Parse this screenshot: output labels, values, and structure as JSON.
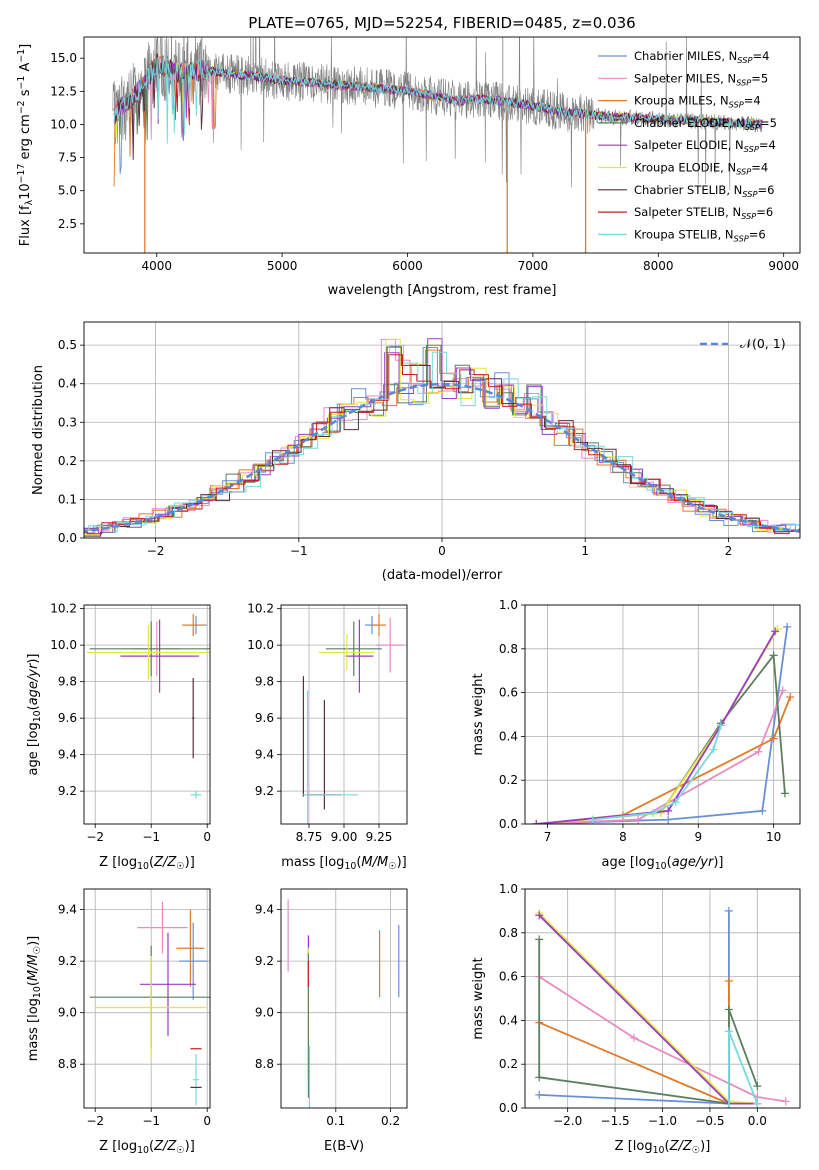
{
  "colors": {
    "Chabrier MILES": "#6a8fd8",
    "Salpeter MILES": "#e98ac2",
    "Kroupa MILES": "#e07a2a",
    "Chabrier ELODIE": "#5a7f5f",
    "Salpeter ELODIE": "#9a3cc8",
    "Kroupa ELODIE": "#e6e63a",
    "Chabrier STELIB": "#5a2e3a",
    "Salpeter STELIB": "#c81e1e",
    "Kroupa STELIB": "#78d8dc",
    "data": "#808080",
    "gauss": "#5b86d6"
  },
  "chart_data": [
    {
      "id": "spectrum",
      "type": "line",
      "title": "PLATE=0765, MJD=52254, FIBERID=0485, z=0.036",
      "xlabel": "wavelength [Angstrom, rest frame]",
      "ylabel": "Flux [f_λ10^-17 erg cm^-2 s^-1 A^-1]",
      "xlim": [
        3420,
        9130
      ],
      "ylim": [
        0.3,
        16.6
      ],
      "xticks": [
        4000,
        5000,
        6000,
        7000,
        8000,
        9000
      ],
      "yticks": [
        2.5,
        5.0,
        7.5,
        10.0,
        12.5,
        15.0
      ],
      "legend_position": "top-right",
      "legend": [
        "Chabrier MILES, N_SSP=4",
        "Salpeter MILES, N_SSP=5",
        "Kroupa MILES, N_SSP=4",
        "Chabrier ELODIE, N_SSP=5",
        "Salpeter ELODIE, N_SSP=4",
        "Kroupa ELODIE, N_SSP=4",
        "Chabrier STELIB, N_SSP=6",
        "Salpeter STELIB, N_SSP=6",
        "Kroupa STELIB, N_SSP=6"
      ],
      "continuum_wavelength": [
        3650,
        3700,
        3800,
        3900,
        4000,
        4100,
        4200,
        4300,
        4400,
        4500,
        4600,
        4800,
        5000,
        5200,
        5400,
        5600,
        5800,
        6000,
        6200,
        6400,
        6600,
        6800,
        7000,
        7200,
        7400,
        7600,
        7800,
        8000,
        8200,
        8400,
        8600,
        8800
      ],
      "continuum_flux": [
        10.5,
        11.2,
        12.0,
        13.0,
        14.6,
        14.2,
        13.9,
        14.0,
        14.1,
        13.9,
        13.8,
        13.6,
        13.3,
        13.2,
        13.0,
        12.9,
        12.7,
        12.5,
        12.2,
        11.8,
        11.9,
        11.7,
        11.4,
        11.0,
        10.8,
        10.6,
        10.5,
        10.4,
        10.3,
        10.2,
        10.1,
        10.0
      ]
    },
    {
      "id": "residuals",
      "type": "bar",
      "xlabel": "(data-model)/error",
      "ylabel": "Normed distribution",
      "xlim": [
        -2.5,
        2.5
      ],
      "ylim": [
        0,
        0.56
      ],
      "xticks": [
        -2,
        -1,
        0,
        1,
        2
      ],
      "yticks": [
        0.0,
        0.1,
        0.2,
        0.3,
        0.4,
        0.5
      ],
      "legend": [
        "𝒩(0, 1)"
      ],
      "legend_position": "top-right",
      "bin_width": 0.1,
      "spikes": [
        [
          -0.4,
          0.52
        ],
        [
          -0.3,
          0.47
        ],
        [
          -0.1,
          0.42
        ],
        [
          0.2,
          0.44
        ],
        [
          0.4,
          0.43
        ],
        [
          -0.1,
          0.53
        ],
        [
          0.6,
          0.41
        ]
      ]
    },
    {
      "id": "age-vs-Z",
      "type": "scatter",
      "xlabel": "Z [log10(Z/Z☉)]",
      "ylabel": "age [log10(age/yr)]",
      "xlim": [
        -2.2,
        0.05
      ],
      "ylim": [
        9.02,
        10.22
      ],
      "xticks": [
        -2,
        -1,
        0
      ],
      "yticks": [
        9.2,
        9.4,
        9.6,
        9.8,
        10.0,
        10.2
      ],
      "points": [
        {
          "series": "Chabrier MILES",
          "x": -0.2,
          "y": 10.11,
          "xerr": 0.2,
          "yerr": 0.05
        },
        {
          "series": "Kroupa MILES",
          "x": -0.25,
          "y": 10.11,
          "xerr": 0.2,
          "yerr": 0.06
        },
        {
          "series": "Salpeter MILES",
          "x": -0.9,
          "y": 9.98,
          "xerr": 0.4,
          "yerr": 0.15
        },
        {
          "series": "Chabrier ELODIE",
          "x": -1.0,
          "y": 9.98,
          "xerr": 1.1,
          "yerr": 0.15
        },
        {
          "series": "Salpeter ELODIE",
          "x": -0.85,
          "y": 9.94,
          "xerr": 0.7,
          "yerr": 0.2
        },
        {
          "series": "Kroupa ELODIE",
          "x": -1.05,
          "y": 9.96,
          "xerr": 1.1,
          "yerr": 0.15
        },
        {
          "series": "Chabrier STELIB",
          "x": -0.25,
          "y": 9.6,
          "xerr": 0.02,
          "yerr": 0.22
        },
        {
          "series": "Kroupa STELIB",
          "x": -0.2,
          "y": 9.18,
          "xerr": 0.1,
          "yerr": 0.02
        }
      ]
    },
    {
      "id": "age-vs-mass",
      "type": "scatter",
      "xlabel": "mass [log10(M/M☉)]",
      "ylabel": "",
      "xlim": [
        8.55,
        9.45
      ],
      "ylim": [
        9.02,
        10.22
      ],
      "xticks": [
        8.75,
        9.0,
        9.25
      ],
      "yticks": [
        9.2,
        9.4,
        9.6,
        9.8,
        10.0,
        10.2
      ],
      "points": [
        {
          "series": "Chabrier MILES",
          "x": 9.2,
          "y": 10.11,
          "xerr": 0.05,
          "yerr": 0.05
        },
        {
          "series": "Kroupa MILES",
          "x": 9.25,
          "y": 10.11,
          "xerr": 0.05,
          "yerr": 0.06
        },
        {
          "series": "Salpeter MILES",
          "x": 9.33,
          "y": 10.0,
          "xerr": 0.1,
          "yerr": 0.15
        },
        {
          "series": "Chabrier ELODIE",
          "x": 9.07,
          "y": 9.98,
          "xerr": 0.2,
          "yerr": 0.15
        },
        {
          "series": "Salpeter ELODIE",
          "x": 9.11,
          "y": 9.94,
          "xerr": 0.1,
          "yerr": 0.2
        },
        {
          "series": "Kroupa ELODIE",
          "x": 9.02,
          "y": 9.96,
          "xerr": 0.2,
          "yerr": 0.1
        },
        {
          "series": "Chabrier STELIB",
          "x": 8.71,
          "y": 9.5,
          "xerr": 0.0,
          "yerr": 0.33
        },
        {
          "series": "Kroupa STELIB",
          "x": 8.74,
          "y": 9.35,
          "xerr": 0.0,
          "yerr": 0.4
        },
        {
          "series": "Salpeter STELIB",
          "x": 8.86,
          "y": 9.18,
          "xerr": 0.12,
          "yerr": 0.0
        },
        {
          "series": "Chabrier STELIB",
          "x": 8.86,
          "y": 9.4,
          "xerr": 0.0,
          "yerr": 0.3
        },
        {
          "series": "Kroupa STELIB",
          "x": 8.9,
          "y": 9.18,
          "xerr": 0.2,
          "yerr": 0.0
        }
      ]
    },
    {
      "id": "massweight-vs-age",
      "type": "line",
      "xlabel": "age [log10(age/yr)]",
      "ylabel": "mass weight",
      "xlim": [
        6.7,
        10.35
      ],
      "ylim": [
        0,
        1.0
      ],
      "xticks": [
        7,
        8,
        9,
        10
      ],
      "yticks": [
        0.0,
        0.2,
        0.4,
        0.6,
        0.8,
        1.0
      ],
      "series": [
        {
          "name": "Chabrier MILES",
          "x": [
            6.85,
            8.6,
            9.85,
            10.18
          ],
          "y": [
            0.0,
            0.02,
            0.06,
            0.9
          ]
        },
        {
          "name": "Salpeter MILES",
          "x": [
            6.85,
            8.2,
            9.8,
            10.12
          ],
          "y": [
            0.0,
            0.02,
            0.33,
            0.61
          ]
        },
        {
          "name": "Kroupa MILES",
          "x": [
            6.85,
            8.0,
            10.0,
            10.22
          ],
          "y": [
            0.0,
            0.04,
            0.39,
            0.58
          ]
        },
        {
          "name": "Chabrier ELODIE",
          "x": [
            6.85,
            8.5,
            9.3,
            10.0,
            10.15
          ],
          "y": [
            0.0,
            0.05,
            0.46,
            0.77,
            0.14
          ]
        },
        {
          "name": "Kroupa ELODIE",
          "x": [
            6.85,
            8.5,
            9.3,
            10.05
          ],
          "y": [
            0.0,
            0.05,
            0.45,
            0.89
          ]
        },
        {
          "name": "Salpeter ELODIE",
          "x": [
            6.85,
            8.6,
            9.3,
            10.02
          ],
          "y": [
            0.0,
            0.06,
            0.45,
            0.88
          ]
        },
        {
          "name": "Kroupa STELIB",
          "x": [
            7.6,
            8.4,
            8.7,
            9.2,
            9.3
          ],
          "y": [
            0.02,
            0.05,
            0.1,
            0.34,
            0.45
          ]
        }
      ]
    },
    {
      "id": "mass-vs-Z",
      "type": "scatter",
      "xlabel": "Z [log10(Z/Z☉)]",
      "ylabel": "mass [log10(M/M☉)]",
      "xlim": [
        -2.2,
        0.05
      ],
      "ylim": [
        8.63,
        9.48
      ],
      "xticks": [
        -2,
        -1,
        0
      ],
      "yticks": [
        8.8,
        9.0,
        9.2,
        9.4
      ],
      "points": [
        {
          "series": "Salpeter MILES",
          "x": -0.8,
          "y": 9.33,
          "xerr": 0.45,
          "yerr": 0.1
        },
        {
          "series": "Kroupa MILES",
          "x": -0.3,
          "y": 9.25,
          "xerr": 0.25,
          "yerr": 0.15
        },
        {
          "series": "Chabrier MILES",
          "x": -0.25,
          "y": 9.2,
          "xerr": 0.25,
          "yerr": 0.15
        },
        {
          "series": "Salpeter ELODIE",
          "x": -0.7,
          "y": 9.11,
          "xerr": 0.5,
          "yerr": 0.2
        },
        {
          "series": "Chabrier ELODIE",
          "x": -1.0,
          "y": 9.06,
          "xerr": 1.1,
          "yerr": 0.2
        },
        {
          "series": "Kroupa ELODIE",
          "x": -1.0,
          "y": 9.02,
          "xerr": 1.0,
          "yerr": 0.2
        },
        {
          "series": "Salpeter STELIB",
          "x": -0.2,
          "y": 8.86,
          "xerr": 0.1,
          "yerr": 0.0
        },
        {
          "series": "Kroupa STELIB",
          "x": -0.2,
          "y": 8.74,
          "xerr": 0.05,
          "yerr": 0.1
        },
        {
          "series": "Chabrier STELIB",
          "x": -0.2,
          "y": 8.71,
          "xerr": 0.1,
          "yerr": 0.0
        }
      ]
    },
    {
      "id": "mass-vs-ebv",
      "type": "scatter",
      "xlabel": "E(B-V)",
      "ylabel": "",
      "xlim": [
        0.0,
        0.23
      ],
      "ylim": [
        8.63,
        9.48
      ],
      "xticks": [
        0.1,
        0.2
      ],
      "yticks": [
        8.8,
        9.0,
        9.2,
        9.4
      ],
      "points": [
        {
          "series": "Salpeter MILES",
          "x": 0.013,
          "y": 9.3,
          "xerr": 0.0,
          "yerr": 0.14
        },
        {
          "series": "Salpeter ELODIE",
          "x": 0.05,
          "y": 9.2,
          "xerr": 0.0,
          "yerr": 0.1
        },
        {
          "series": "Kroupa ELODIE",
          "x": 0.05,
          "y": 9.0,
          "xerr": 0.0,
          "yerr": 0.25
        },
        {
          "series": "Chabrier ELODIE",
          "x": 0.05,
          "y": 8.95,
          "xerr": 0.0,
          "yerr": 0.28
        },
        {
          "series": "Kroupa STELIB",
          "x": 0.052,
          "y": 8.75,
          "xerr": 0.0,
          "yerr": 0.12
        },
        {
          "series": "Salpeter STELIB",
          "x": 0.05,
          "y": 9.15,
          "xerr": 0.0,
          "yerr": 0.05
        },
        {
          "series": "Kroupa MILES",
          "x": 0.18,
          "y": 9.19,
          "xerr": 0.0,
          "yerr": 0.13
        },
        {
          "series": "Chabrier MILES",
          "x": 0.215,
          "y": 9.2,
          "xerr": 0.0,
          "yerr": 0.14
        }
      ]
    },
    {
      "id": "massweight-vs-Z",
      "type": "line",
      "xlabel": "Z [log10(Z/Z☉)]",
      "ylabel": "mass weight",
      "xlim": [
        -2.45,
        0.45
      ],
      "ylim": [
        0,
        1.0
      ],
      "xticks": [
        -2.0,
        -1.5,
        -1.0,
        -0.5,
        0.0
      ],
      "yticks": [
        0.0,
        0.2,
        0.4,
        0.6,
        0.8,
        1.0
      ],
      "series": [
        {
          "name": "Chabrier MILES",
          "x": [
            -2.3,
            -0.3,
            -0.3
          ],
          "y": [
            0.06,
            0.02,
            0.9
          ]
        },
        {
          "name": "Salpeter MILES",
          "x": [
            -2.3,
            -1.3,
            0.0,
            0.3
          ],
          "y": [
            0.6,
            0.32,
            0.05,
            0.03
          ]
        },
        {
          "name": "Kroupa MILES",
          "x": [
            -2.3,
            -0.3,
            -0.3
          ],
          "y": [
            0.39,
            0.02,
            0.58
          ]
        },
        {
          "name": "Chabrier ELODIE",
          "x": [
            -2.3,
            -2.3,
            -0.3,
            -0.3,
            0.0
          ],
          "y": [
            0.77,
            0.14,
            0.02,
            0.45,
            0.1
          ]
        },
        {
          "name": "Kroupa ELODIE",
          "x": [
            -2.3,
            -0.3,
            0.0
          ],
          "y": [
            0.89,
            0.03,
            0.02
          ]
        },
        {
          "name": "Salpeter ELODIE",
          "x": [
            -2.3,
            -0.3,
            0.0
          ],
          "y": [
            0.88,
            0.02,
            0.02
          ]
        },
        {
          "name": "Kroupa STELIB",
          "x": [
            -0.3,
            -0.3,
            0.0
          ],
          "y": [
            0.0,
            0.35,
            0.02
          ]
        }
      ]
    }
  ]
}
